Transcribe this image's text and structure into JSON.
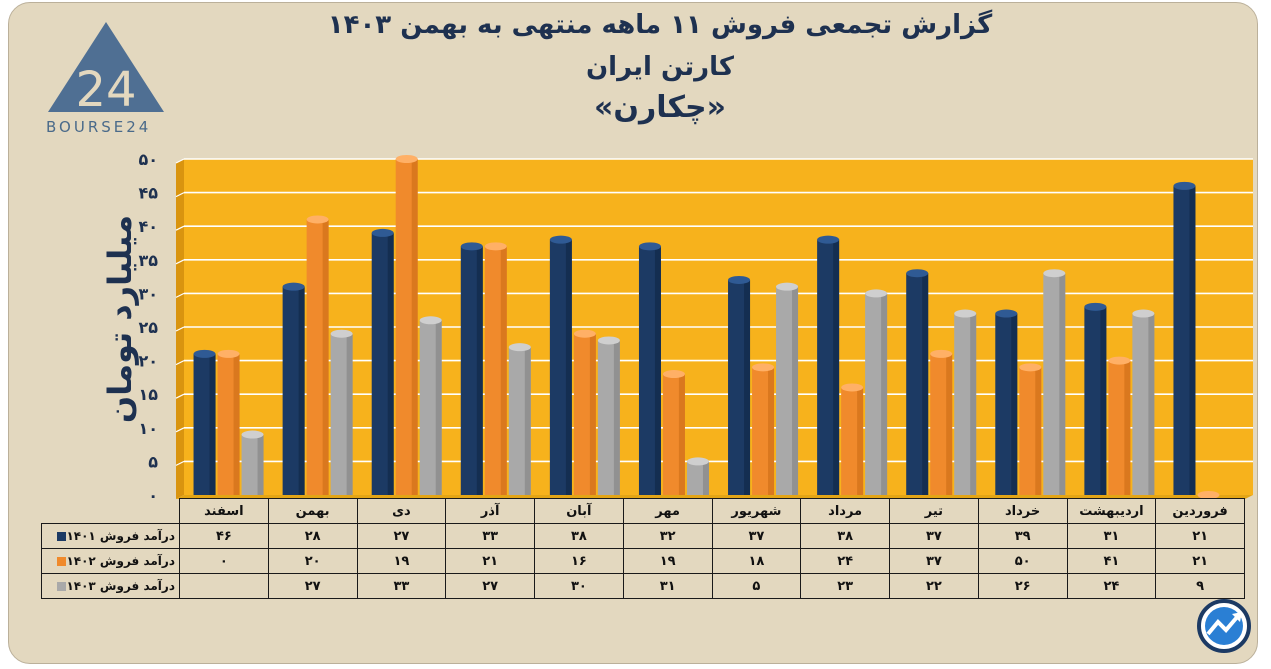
{
  "header": {
    "title": "گزارش تجمعی فروش ۱۱ ماهه منتهی به بهمن ۱۴۰۳",
    "subtitle": "کارتن ایران",
    "company": "«چکارن»",
    "logo_text": "BOURSE24",
    "logo_mark": "24"
  },
  "colors": {
    "frame_bg": "#e3d8bf",
    "plot_bg": "#f7b21c",
    "series_1401": "#1c3a64",
    "series_1402": "#f08a2c",
    "series_1403": "#a9a9a9",
    "text": "#1e3150"
  },
  "chart_data": {
    "type": "bar",
    "title": "گزارش تجمعی فروش ۱۱ ماهه منتهی به بهمن ۱۴۰۳",
    "ylabel": "میلیارد تومان",
    "ylim": [
      0,
      50
    ],
    "yticks": [
      0,
      5,
      10,
      15,
      20,
      25,
      30,
      35,
      40,
      45,
      50
    ],
    "ytick_labels": [
      "۰",
      "۵",
      "۱۰",
      "۱۵",
      "۲۰",
      "۲۵",
      "۳۰",
      "۳۵",
      "۴۰",
      "۴۵",
      "۵۰"
    ],
    "grid": true,
    "categories": [
      "فروردین",
      "اردیبهشت",
      "خرداد",
      "تیر",
      "مرداد",
      "شهریور",
      "مهر",
      "آبان",
      "آذر",
      "دی",
      "بهمن",
      "اسفند"
    ],
    "series": [
      {
        "name": "درآمد فروش ۱۴۰۱",
        "values": [
          21,
          31,
          39,
          37,
          38,
          37,
          32,
          38,
          33,
          27,
          28,
          46
        ],
        "labels": [
          "۲۱",
          "۳۱",
          "۳۹",
          "۳۷",
          "۳۸",
          "۳۷",
          "۳۲",
          "۳۸",
          "۳۳",
          "۲۷",
          "۲۸",
          "۴۶"
        ]
      },
      {
        "name": "درآمد فروش ۱۴۰۲",
        "values": [
          21,
          41,
          50,
          37,
          24,
          18,
          19,
          16,
          21,
          19,
          20,
          0
        ],
        "labels": [
          "۲۱",
          "۴۱",
          "۵۰",
          "۳۷",
          "۲۴",
          "۱۸",
          "۱۹",
          "۱۶",
          "۲۱",
          "۱۹",
          "۲۰",
          "۰"
        ]
      },
      {
        "name": "درآمد فروش ۱۴۰۳",
        "values": [
          9,
          24,
          26,
          22,
          23,
          5,
          31,
          30,
          27,
          33,
          27,
          null
        ],
        "labels": [
          "۹",
          "۲۴",
          "۲۶",
          "۲۲",
          "۲۳",
          "۵",
          "۳۱",
          "۳۰",
          "۲۷",
          "۳۳",
          "۲۷",
          ""
        ]
      }
    ]
  }
}
